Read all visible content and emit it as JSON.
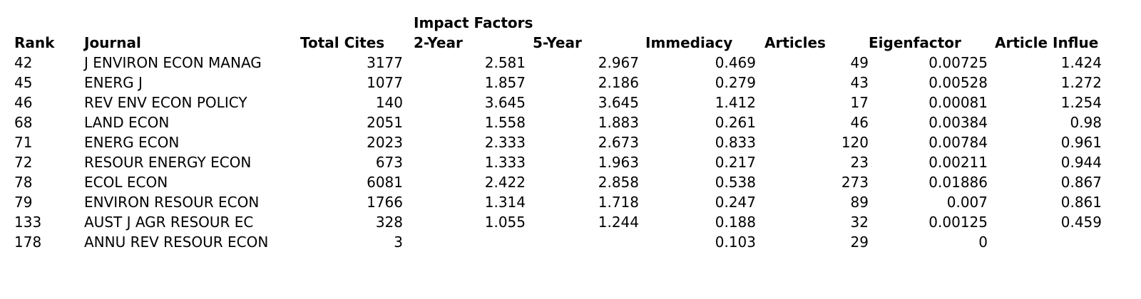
{
  "colors": {
    "text": "#000000",
    "background": "#ffffff"
  },
  "chart_data": {
    "type": "table",
    "group_header": "Impact Factors",
    "group_header_over_columns": [
      "2-Year",
      "5-Year"
    ],
    "columns": [
      {
        "key": "rank",
        "label": "Rank"
      },
      {
        "key": "journal",
        "label": "Journal"
      },
      {
        "key": "total-cites",
        "label": "Total Cites"
      },
      {
        "key": "impact-2-year",
        "label": "2-Year"
      },
      {
        "key": "impact-5-year",
        "label": "5-Year"
      },
      {
        "key": "immediacy",
        "label": "Immediacy"
      },
      {
        "key": "articles",
        "label": "Articles"
      },
      {
        "key": "eigenfactor",
        "label": "Eigenfactor"
      },
      {
        "key": "article-influence",
        "label": "Article Influe"
      }
    ],
    "rows": [
      [
        "42",
        "J ENVIRON ECON MANAG",
        "3177",
        "2.581",
        "2.967",
        "0.469",
        "49",
        "0.00725",
        "1.424"
      ],
      [
        "45",
        "ENERG J",
        "1077",
        "1.857",
        "2.186",
        "0.279",
        "43",
        "0.00528",
        "1.272"
      ],
      [
        "46",
        "REV ENV ECON POLICY",
        "140",
        "3.645",
        "3.645",
        "1.412",
        "17",
        "0.00081",
        "1.254"
      ],
      [
        "68",
        "LAND ECON",
        "2051",
        "1.558",
        "1.883",
        "0.261",
        "46",
        "0.00384",
        "0.98"
      ],
      [
        "71",
        "ENERG ECON",
        "2023",
        "2.333",
        "2.673",
        "0.833",
        "120",
        "0.00784",
        "0.961"
      ],
      [
        "72",
        "RESOUR ENERGY ECON",
        "673",
        "1.333",
        "1.963",
        "0.217",
        "23",
        "0.00211",
        "0.944"
      ],
      [
        "78",
        "ECOL ECON",
        "6081",
        "2.422",
        "2.858",
        "0.538",
        "273",
        "0.01886",
        "0.867"
      ],
      [
        "79",
        "ENVIRON RESOUR ECON",
        "1766",
        "1.314",
        "1.718",
        "0.247",
        "89",
        "0.007",
        "0.861"
      ],
      [
        "133",
        "AUST J AGR RESOUR EC",
        "328",
        "1.055",
        "1.244",
        "0.188",
        "32",
        "0.00125",
        "0.459"
      ],
      [
        "178",
        "ANNU REV RESOUR ECON",
        "3",
        "",
        "",
        "0.103",
        "29",
        "0",
        ""
      ]
    ]
  }
}
